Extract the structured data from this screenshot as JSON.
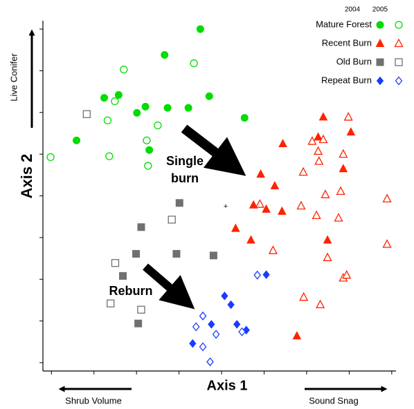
{
  "chart_data": {
    "type": "scatter",
    "x_label": "Axis 1",
    "y_label": "Axis 2",
    "annotations": {
      "y_direction": "Live Conifer",
      "x_left": "Shrub Volume",
      "x_right": "Sound Snag",
      "single_1": "Single",
      "single_2": "burn",
      "reburn": "Reburn"
    },
    "years": [
      "2004",
      "2005"
    ],
    "xlim": [
      -0.2,
      8.1
    ],
    "ylim": [
      -0.2,
      8.2
    ],
    "xticks": [
      0,
      1,
      2,
      3,
      4,
      5,
      6,
      7,
      8
    ],
    "yticks": [
      0,
      1,
      2,
      3,
      4,
      5,
      6,
      7,
      8
    ],
    "series": [
      {
        "name": "Mature Forest",
        "color": "#00dd00",
        "marker": "circle",
        "x": [
          [
            3.5,
            2.66,
            1.24,
            1.58,
            3.71,
            2.01,
            2.21,
            2.73,
            3.22,
            4.54,
            0.59,
            2.3
          ],
          [
            1.7,
            3.35,
            1.49,
            1.32,
            2.5,
            2.24,
            -0.02,
            1.36,
            2.27
          ]
        ],
        "values": [
          [
            8.0,
            7.38,
            6.35,
            6.42,
            6.39,
            5.99,
            6.14,
            6.11,
            6.11,
            5.87,
            5.33,
            5.1
          ],
          [
            7.03,
            7.18,
            6.27,
            5.81,
            5.69,
            5.33,
            4.93,
            4.95,
            4.72
          ]
        ]
      },
      {
        "name": "Recent Burn",
        "color": "#ff2200",
        "marker": "triangle",
        "x": [
          [
            6.39,
            6.27,
            7.04,
            5.44,
            6.86,
            4.92,
            5.25,
            5.05,
            4.75,
            5.42,
            4.33,
            4.69,
            6.49,
            5.77
          ],
          [
            6.98,
            6.13,
            6.39,
            6.27,
            6.29,
            6.86,
            5.92,
            6.8,
            6.44,
            7.89,
            5.87,
            6.23,
            4.9,
            6.75,
            5.21,
            7.89,
            6.49,
            6.86,
            6.94,
            5.93,
            6.32
          ]
        ],
        "values": [
          [
            5.89,
            5.41,
            5.53,
            5.25,
            4.65,
            4.52,
            4.24,
            3.68,
            3.78,
            3.63,
            3.22,
            2.94,
            2.94,
            0.64
          ],
          [
            5.89,
            5.31,
            5.35,
            5.07,
            4.83,
            5.0,
            4.57,
            4.11,
            4.03,
            3.93,
            3.76,
            3.53,
            3.8,
            3.47,
            2.69,
            2.84,
            2.52,
            2.03,
            2.1,
            1.57,
            1.39
          ]
        ]
      },
      {
        "name": "Old Burn",
        "color": "#707070",
        "marker": "square",
        "x": [
          [
            3.01,
            2.11,
            1.99,
            2.94,
            3.81,
            1.68,
            2.04
          ],
          [
            0.83,
            2.83,
            1.5,
            2.11,
            1.39
          ]
        ],
        "values": [
          [
            3.83,
            3.25,
            2.61,
            2.61,
            2.57,
            2.08,
            0.94
          ],
          [
            5.96,
            3.43,
            2.39,
            1.27,
            1.42
          ]
        ]
      },
      {
        "name": "Repeat Burn",
        "color": "#1a3cff",
        "marker": "diamond",
        "x": [
          [
            5.05,
            4.07,
            4.22,
            3.76,
            4.36,
            4.58,
            3.32
          ],
          [
            4.84,
            3.56,
            3.4,
            3.87,
            4.48,
            3.56,
            3.73
          ]
        ],
        "values": [
          [
            2.11,
            1.6,
            1.39,
            0.92,
            0.92,
            0.78,
            0.46
          ],
          [
            2.1,
            1.12,
            0.86,
            0.68,
            0.74,
            0.38,
            0.02
          ]
        ]
      }
    ]
  }
}
